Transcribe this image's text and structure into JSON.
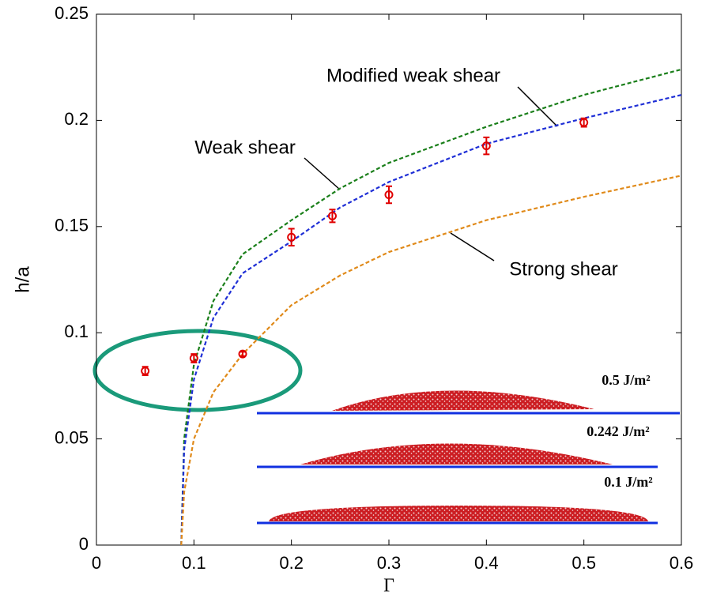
{
  "chart_data": {
    "type": "line",
    "x_label": "Γ",
    "y_label": "h/a",
    "xlim": [
      0,
      0.6
    ],
    "ylim": [
      0,
      0.25
    ],
    "xticks": [
      0,
      0.1,
      0.2,
      0.3,
      0.4,
      0.5,
      0.6
    ],
    "yticks": [
      0,
      0.05,
      0.1,
      0.15,
      0.2,
      0.25
    ],
    "x": [
      0.087,
      0.09,
      0.1,
      0.12,
      0.15,
      0.2,
      0.25,
      0.3,
      0.4,
      0.5,
      0.6
    ],
    "series": [
      {
        "name": "Weak shear",
        "color": "#1a7f1a",
        "values": [
          0,
          0.05,
          0.085,
          0.115,
          0.137,
          0.153,
          0.168,
          0.18,
          0.197,
          0.212,
          0.224
        ]
      },
      {
        "name": "Modified weak shear",
        "color": "#1f2fd6",
        "values": [
          0,
          0.045,
          0.078,
          0.107,
          0.128,
          0.143,
          0.159,
          0.171,
          0.189,
          0.201,
          0.212
        ]
      },
      {
        "name": "Strong shear",
        "color": "#e08a1a",
        "values": [
          0,
          0.025,
          0.05,
          0.072,
          0.09,
          0.113,
          0.127,
          0.138,
          0.153,
          0.164,
          0.174
        ]
      }
    ],
    "points": {
      "color": "#e00000",
      "x": [
        0.05,
        0.1,
        0.15,
        0.2,
        0.242,
        0.3,
        0.4,
        0.5
      ],
      "values": [
        0.082,
        0.088,
        0.09,
        0.145,
        0.155,
        0.165,
        0.188,
        0.199
      ],
      "errors": [
        0.002,
        0.002,
        0.001,
        0.004,
        0.003,
        0.004,
        0.004,
        0.002
      ]
    },
    "inset_labels": [
      "0.5 J/m²",
      "0.242 J/m²",
      "0.1 J/m²"
    ]
  }
}
